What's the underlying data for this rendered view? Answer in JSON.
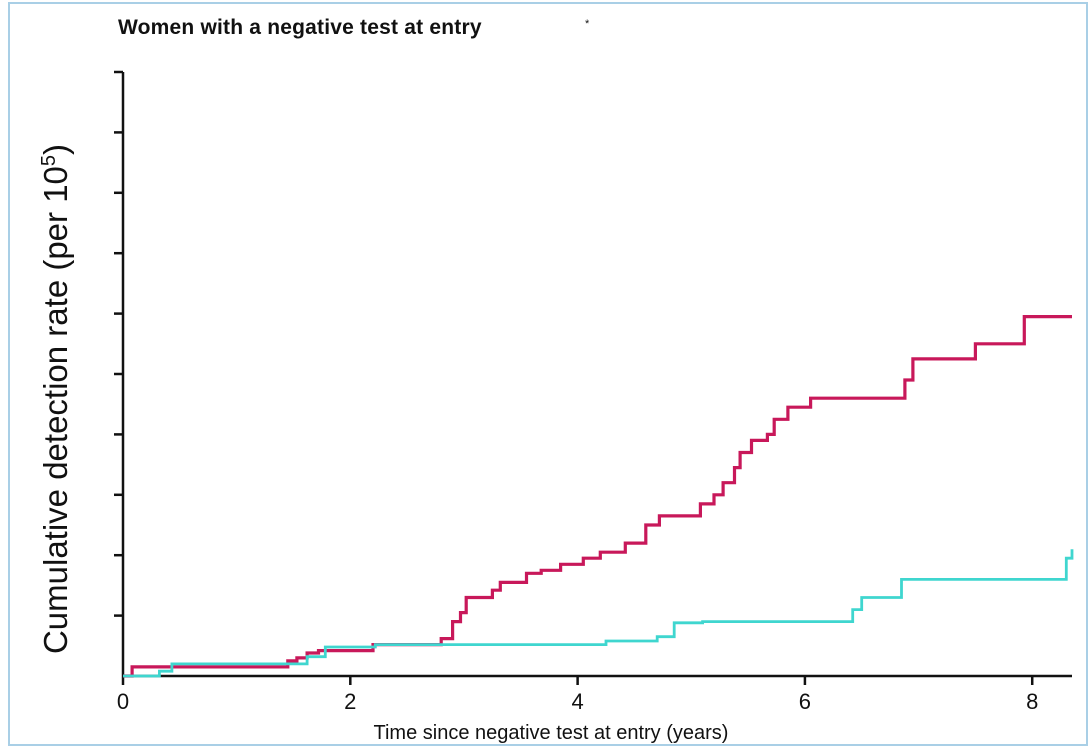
{
  "chart_data": {
    "type": "line",
    "title": "Women with a negative test at entry",
    "title_mark": "*",
    "xlabel": "Time since negative test at entry (years)",
    "ylabel": "Cumulative detection rate (per 10",
    "ylabel_sup": "5",
    "ylabel_close": ")",
    "xlim": [
      0,
      8.35
    ],
    "ylim": [
      0,
      10
    ],
    "x_ticks": [
      0,
      2,
      4,
      6,
      8
    ],
    "x_tick_labels": [
      "0",
      "2",
      "4",
      "6",
      "8"
    ],
    "y_ticks": [
      1,
      2,
      3,
      4,
      5,
      6,
      7,
      8,
      9,
      10
    ],
    "y_tick_labels_shown": false,
    "grid": false,
    "legend": "none",
    "series": [
      {
        "color": "#c8185a",
        "step": true,
        "x": [
          0,
          0.08,
          0.5,
          1.38,
          1.45,
          1.53,
          1.62,
          1.72,
          2.12,
          2.2,
          2.8,
          2.9,
          2.97,
          3.02,
          3.1,
          3.25,
          3.32,
          3.4,
          3.55,
          3.68,
          3.85,
          4.05,
          4.2,
          4.42,
          4.6,
          4.72,
          4.8,
          5.08,
          5.2,
          5.28,
          5.38,
          5.43,
          5.53,
          5.67,
          5.73,
          5.85,
          6.05,
          6.88,
          6.95,
          7.5,
          7.93,
          8.35
        ],
        "y": [
          0,
          0.15,
          0.15,
          0.15,
          0.25,
          0.3,
          0.38,
          0.42,
          0.42,
          0.52,
          0.62,
          0.9,
          1.05,
          1.3,
          1.3,
          1.42,
          1.55,
          1.55,
          1.7,
          1.75,
          1.85,
          1.95,
          2.05,
          2.2,
          2.5,
          2.65,
          2.65,
          2.85,
          3.0,
          3.2,
          3.45,
          3.7,
          3.9,
          4.0,
          4.25,
          4.45,
          4.6,
          4.9,
          5.25,
          5.5,
          5.95,
          5.95
        ]
      },
      {
        "color": "#3fd6cf",
        "step": true,
        "x": [
          0,
          0.32,
          0.43,
          1.5,
          1.62,
          1.78,
          2.22,
          4.25,
          4.7,
          4.85,
          5.1,
          6.42,
          6.5,
          6.62,
          6.85,
          8.3,
          8.35
        ],
        "y": [
          0,
          0.08,
          0.2,
          0.2,
          0.32,
          0.48,
          0.52,
          0.58,
          0.65,
          0.88,
          0.9,
          1.1,
          1.3,
          1.3,
          1.6,
          1.95,
          2.1
        ]
      }
    ]
  }
}
